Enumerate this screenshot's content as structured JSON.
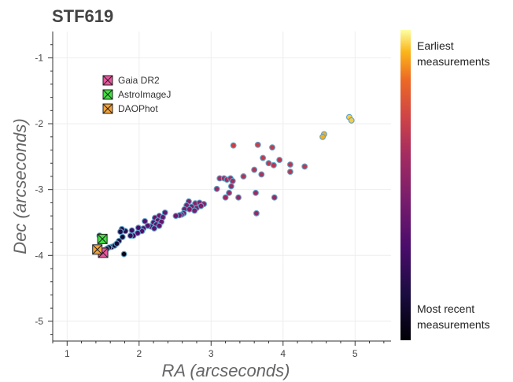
{
  "chart_data": {
    "type": "scatter",
    "title": "STF619",
    "xlabel": "RA (arcseconds)",
    "ylabel": "Dec (arcseconds)",
    "xlim": [
      0.8,
      5.5
    ],
    "ylim": [
      -5.3,
      -0.6
    ],
    "xticks": [
      1,
      2,
      3,
      4,
      5
    ],
    "yticks": [
      -1,
      -2,
      -3,
      -4,
      -5
    ],
    "grid": true,
    "legend_position": "top-left",
    "colorbar": {
      "top_label": [
        "Earliest",
        "measurements"
      ],
      "bottom_label": [
        "Most recent",
        "measurements"
      ],
      "colormap": "inferno"
    },
    "series": [
      {
        "name": "",
        "marker": "circle",
        "points": [
          [
            4.92,
            -1.9,
            0.95
          ],
          [
            4.95,
            -1.95,
            0.95
          ],
          [
            4.57,
            -2.16,
            0.92
          ],
          [
            4.55,
            -2.2,
            0.92
          ],
          [
            3.31,
            -2.33,
            0.7
          ],
          [
            3.65,
            -2.32,
            0.7
          ],
          [
            3.85,
            -2.36,
            0.68
          ],
          [
            3.72,
            -2.52,
            0.68
          ],
          [
            3.8,
            -2.6,
            0.67
          ],
          [
            3.95,
            -2.55,
            0.66
          ],
          [
            4.1,
            -2.62,
            0.66
          ],
          [
            4.3,
            -2.65,
            0.67
          ],
          [
            4.1,
            -2.73,
            0.66
          ],
          [
            3.87,
            -2.63,
            0.65
          ],
          [
            3.6,
            -2.7,
            0.65
          ],
          [
            3.45,
            -2.8,
            0.64
          ],
          [
            3.12,
            -2.83,
            0.6
          ],
          [
            3.18,
            -2.83,
            0.6
          ],
          [
            3.22,
            -2.85,
            0.6
          ],
          [
            3.27,
            -2.83,
            0.6
          ],
          [
            3.3,
            -2.87,
            0.6
          ],
          [
            3.7,
            -2.77,
            0.63
          ],
          [
            3.28,
            -2.95,
            0.58
          ],
          [
            3.08,
            -2.99,
            0.58
          ],
          [
            3.25,
            -3.05,
            0.58
          ],
          [
            3.62,
            -3.05,
            0.58
          ],
          [
            3.2,
            -3.12,
            0.57
          ],
          [
            3.38,
            -3.12,
            0.57
          ],
          [
            3.88,
            -3.12,
            0.57
          ],
          [
            3.63,
            -3.36,
            0.56
          ],
          [
            2.69,
            -3.18,
            0.5
          ],
          [
            2.78,
            -3.21,
            0.5
          ],
          [
            2.84,
            -3.2,
            0.5
          ],
          [
            2.9,
            -3.22,
            0.5
          ],
          [
            2.66,
            -3.24,
            0.48
          ],
          [
            2.73,
            -3.26,
            0.48
          ],
          [
            2.8,
            -3.28,
            0.48
          ],
          [
            2.86,
            -3.25,
            0.48
          ],
          [
            2.63,
            -3.3,
            0.46
          ],
          [
            2.7,
            -3.3,
            0.46
          ],
          [
            2.77,
            -3.32,
            0.46
          ],
          [
            2.62,
            -3.36,
            0.44
          ],
          [
            2.59,
            -3.38,
            0.44
          ],
          [
            2.56,
            -3.39,
            0.43
          ],
          [
            2.51,
            -3.4,
            0.42
          ],
          [
            2.36,
            -3.35,
            0.4
          ],
          [
            2.28,
            -3.4,
            0.4
          ],
          [
            2.33,
            -3.42,
            0.4
          ],
          [
            2.22,
            -3.43,
            0.38
          ],
          [
            2.26,
            -3.47,
            0.38
          ],
          [
            2.31,
            -3.49,
            0.38
          ],
          [
            2.2,
            -3.5,
            0.37
          ],
          [
            2.24,
            -3.53,
            0.37
          ],
          [
            2.28,
            -3.55,
            0.37
          ],
          [
            2.16,
            -3.56,
            0.36
          ],
          [
            2.21,
            -3.59,
            0.36
          ],
          [
            2.08,
            -3.48,
            0.34
          ],
          [
            2.12,
            -3.55,
            0.34
          ],
          [
            2.06,
            -3.59,
            0.34
          ],
          [
            2.04,
            -3.63,
            0.33
          ],
          [
            1.99,
            -3.58,
            0.3
          ],
          [
            1.98,
            -3.66,
            0.3
          ],
          [
            1.9,
            -3.62,
            0.28
          ],
          [
            1.92,
            -3.7,
            0.26
          ],
          [
            1.88,
            -3.7,
            0.24
          ],
          [
            1.81,
            -3.63,
            0.2
          ],
          [
            1.76,
            -3.6,
            0.18
          ],
          [
            1.74,
            -3.64,
            0.18
          ],
          [
            1.72,
            -3.78,
            0.15
          ],
          [
            1.77,
            -3.72,
            0.12
          ],
          [
            1.79,
            -3.98,
            0.05
          ],
          [
            1.62,
            -3.87,
            0.12
          ],
          [
            1.66,
            -3.85,
            0.12
          ],
          [
            1.69,
            -3.82,
            0.12
          ],
          [
            1.58,
            -3.88,
            0.1
          ],
          [
            1.55,
            -3.9,
            0.1
          ],
          [
            1.52,
            -3.92,
            0.08
          ],
          [
            1.45,
            -3.7,
            0.08
          ],
          [
            1.44,
            -3.88,
            0.06
          ],
          [
            1.4,
            -3.92,
            0.05
          ]
        ]
      },
      {
        "name": "Gaia DR2",
        "marker": "square_x",
        "color": "#e8569e",
        "points": [
          [
            1.5,
            -3.96
          ]
        ]
      },
      {
        "name": "AstroImageJ",
        "marker": "square_x",
        "color": "#43e043",
        "points": [
          [
            1.49,
            -3.75
          ]
        ]
      },
      {
        "name": "DAOPhot",
        "marker": "square_x",
        "color": "#f2a43a",
        "points": [
          [
            1.42,
            -3.91
          ]
        ]
      }
    ]
  }
}
